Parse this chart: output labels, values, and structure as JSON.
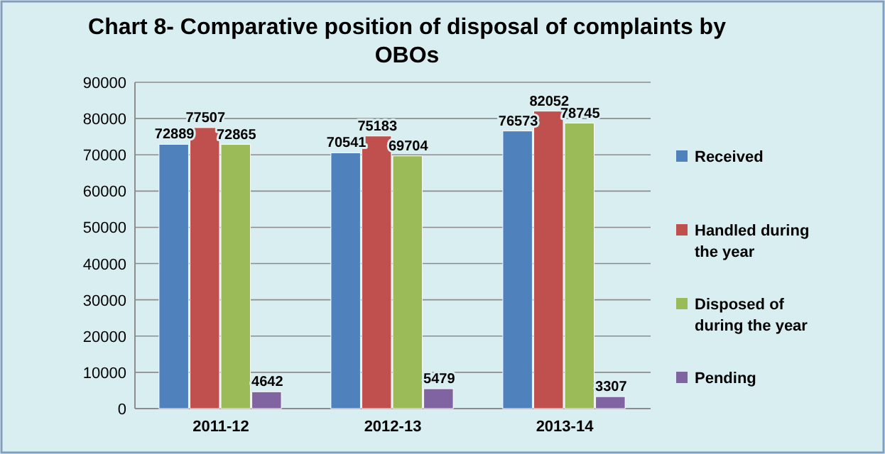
{
  "chart_data": {
    "type": "bar",
    "title": "Chart 8- Comparative position of disposal of complaints by OBOs",
    "categories": [
      "2011-12",
      "2012-13",
      "2013-14"
    ],
    "series": [
      {
        "name": "Received",
        "color": "#4f81bd",
        "values": [
          72889,
          70541,
          76573
        ]
      },
      {
        "name": "Handled during the year",
        "color": "#c0504d",
        "values": [
          77507,
          75183,
          82052
        ]
      },
      {
        "name": "Disposed of during the year",
        "color": "#9bbb59",
        "values": [
          72865,
          69704,
          78745
        ]
      },
      {
        "name": "Pending",
        "color": "#8064a2",
        "values": [
          4642,
          5479,
          3307
        ]
      }
    ],
    "ylim": [
      0,
      90000
    ],
    "yticks": [
      0,
      10000,
      20000,
      30000,
      40000,
      50000,
      60000,
      70000,
      80000,
      90000
    ],
    "grid": "y",
    "legend": "right",
    "data_labels": true
  }
}
